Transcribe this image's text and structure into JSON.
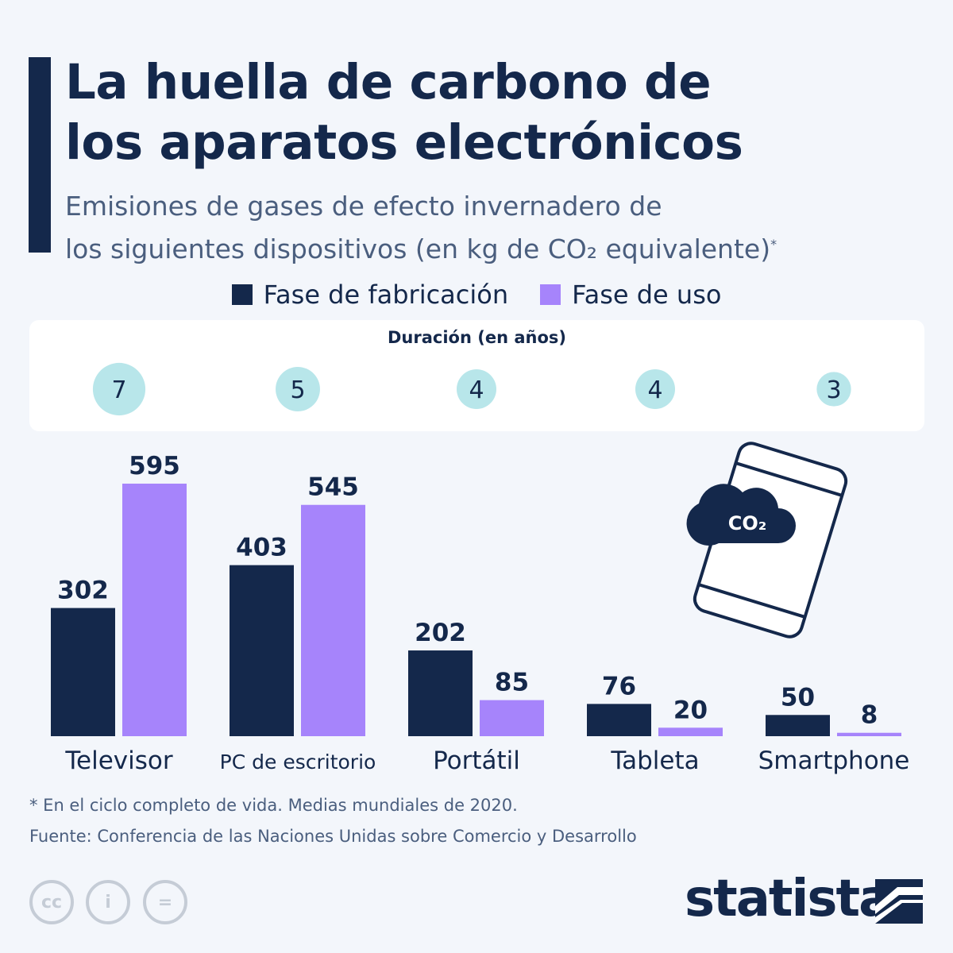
{
  "title": [
    "La huella de carbono de",
    "los aparatos electrónicos"
  ],
  "subtitle": [
    "Emisiones de gases de efecto invernadero de",
    "los siguientes dispositivos (en kg de CO₂ equivalente)"
  ],
  "subtitle_mark": "*",
  "duration_title": "Duración (en años)",
  "icon_text": "CO₂",
  "chart_data": {
    "type": "bar",
    "categories": [
      "Televisor",
      "PC de escritorio",
      "Portátil",
      "Tableta",
      "Smartphone"
    ],
    "series": [
      {
        "name": "Fase de fabricación",
        "color": "#14284b",
        "values": [
          302,
          403,
          202,
          76,
          50
        ]
      },
      {
        "name": "Fase de uso",
        "color": "#a684fb",
        "values": [
          595,
          545,
          85,
          20,
          8
        ]
      }
    ],
    "duration_years": [
      7,
      5,
      4,
      4,
      3
    ],
    "duration_color": "#b8e6ea",
    "legend": "top"
  },
  "footnote": "* En el ciclo completo de vida. Medias mundiales de 2020.",
  "source": "Fuente: Conferencia de las Naciones Unidas sobre Comercio y Desarrollo",
  "license_icons": [
    "cc-icon",
    "attribution-icon",
    "no-derivatives-icon"
  ],
  "logo": "statista"
}
